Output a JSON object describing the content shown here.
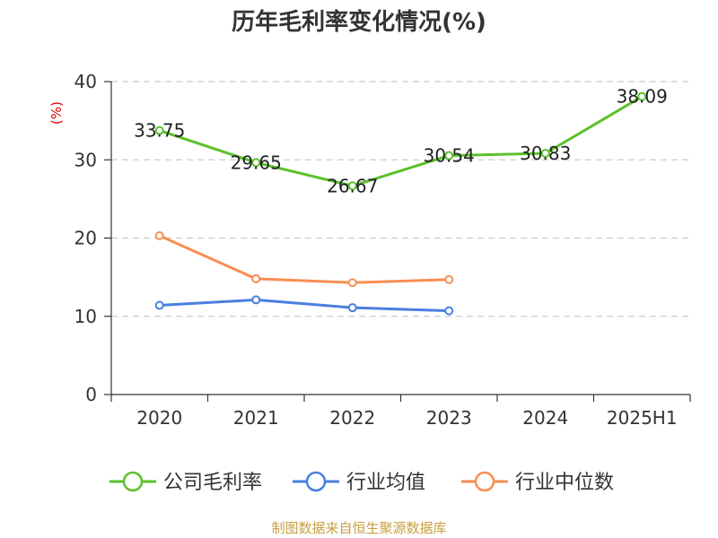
{
  "chart_data": {
    "type": "line",
    "title": "历年毛利率变化情况(%)",
    "ylabel": "(%)",
    "xlabel": "",
    "categories": [
      "2020",
      "2021",
      "2022",
      "2023",
      "2024",
      "2025H1"
    ],
    "yticks": [
      "0",
      "10",
      "20",
      "30",
      "40"
    ],
    "ylim": [
      0,
      40
    ],
    "grid": true,
    "legend_position": "bottom",
    "series": [
      {
        "name": "公司毛利率",
        "color": "#5cc12b",
        "values": [
          33.75,
          29.65,
          26.67,
          30.54,
          30.83,
          38.09
        ],
        "labels": [
          "33.75",
          "29.65",
          "26.67",
          "30.54",
          "30.83",
          "38.09"
        ]
      },
      {
        "name": "行业均值",
        "color": "#4a7fe0",
        "values": [
          11.4,
          12.1,
          11.1,
          10.7,
          null,
          null
        ]
      },
      {
        "name": "行业中位数",
        "color": "#f98e52",
        "values": [
          20.3,
          14.8,
          14.3,
          14.7,
          null,
          null
        ]
      }
    ]
  },
  "source": "制图数据来自恒生聚源数据库"
}
